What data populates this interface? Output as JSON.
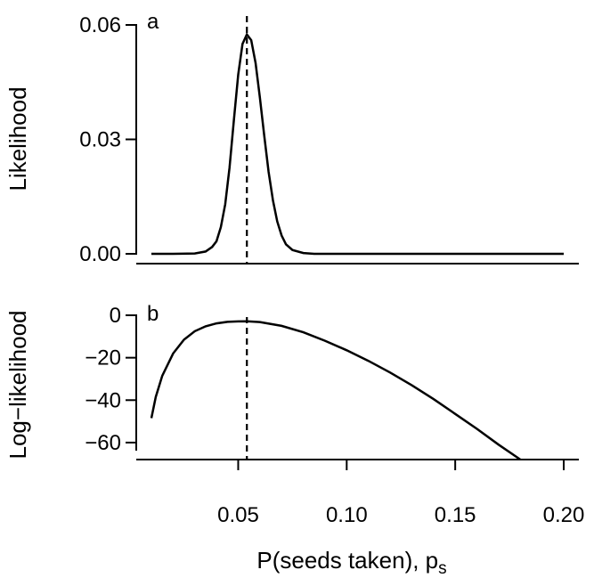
{
  "chart_data": [
    {
      "panel_label": "a",
      "type": "line",
      "ylabel": "Likelihood",
      "xlim": [
        0.01,
        0.2
      ],
      "ylim": [
        0,
        0.06
      ],
      "yticks": [
        "0.00",
        "0.03",
        "0.06"
      ],
      "mle_x": 0.054,
      "mle_line_style": "dashed",
      "series": [
        {
          "x": [
            0.01,
            0.02,
            0.03,
            0.035,
            0.038,
            0.04,
            0.042,
            0.044,
            0.046,
            0.048,
            0.05,
            0.052,
            0.054,
            0.056,
            0.058,
            0.06,
            0.062,
            0.064,
            0.066,
            0.068,
            0.07,
            0.072,
            0.075,
            0.08,
            0.085,
            0.09,
            0.1,
            0.12,
            0.15,
            0.2
          ],
          "y": [
            0.0,
            0.0,
            0.0001,
            0.0006,
            0.0018,
            0.0033,
            0.007,
            0.013,
            0.0225,
            0.035,
            0.047,
            0.055,
            0.0575,
            0.056,
            0.05,
            0.041,
            0.031,
            0.0215,
            0.014,
            0.0085,
            0.0048,
            0.0025,
            0.001,
            0.0002,
            0.0,
            0.0,
            0.0,
            0.0,
            0.0,
            0.0
          ]
        }
      ]
    },
    {
      "panel_label": "b",
      "type": "line",
      "ylabel": "Log−likelihood",
      "xlabel_main": "P(seeds taken), p",
      "xlabel_sub": "s",
      "xlim": [
        0.01,
        0.2
      ],
      "ylim": [
        -68,
        0
      ],
      "yticks": [
        "0",
        "−20",
        "−40",
        "−60"
      ],
      "xticks": [
        "0.05",
        "0.10",
        "0.15",
        "0.20"
      ],
      "mle_x": 0.054,
      "mle_line_style": "dashed",
      "series": [
        {
          "x": [
            0.01,
            0.012,
            0.015,
            0.02,
            0.025,
            0.03,
            0.035,
            0.04,
            0.045,
            0.05,
            0.054,
            0.06,
            0.07,
            0.08,
            0.09,
            0.1,
            0.11,
            0.12,
            0.13,
            0.14,
            0.15,
            0.16,
            0.17,
            0.18
          ],
          "y": [
            -48.5,
            -38.5,
            -28.5,
            -18.0,
            -11.5,
            -7.5,
            -5.2,
            -3.8,
            -3.1,
            -2.9,
            -2.8,
            -3.2,
            -5.0,
            -8.0,
            -12.0,
            -16.5,
            -21.5,
            -27.0,
            -33.0,
            -39.5,
            -46.5,
            -53.5,
            -61.0,
            -68.0
          ]
        }
      ]
    }
  ]
}
